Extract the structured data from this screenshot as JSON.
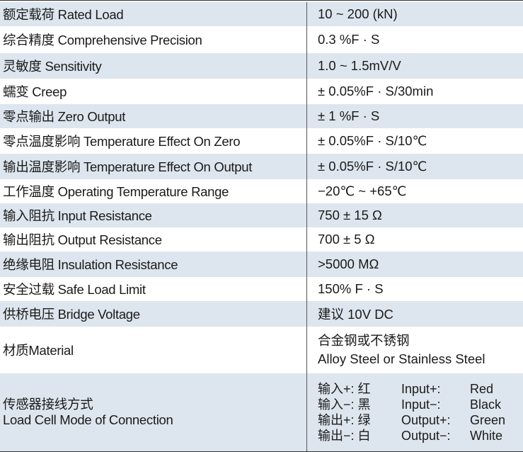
{
  "rows": [
    {
      "label": "额定载荷 Rated Load",
      "value": "10 ~ 200 (kN)"
    },
    {
      "label": "综合精度 Comprehensive Precision",
      "value": "0.3 %F · S"
    },
    {
      "label": "灵敏度 Sensitivity",
      "value": "1.0 ~ 1.5mV/V"
    },
    {
      "label": "蠕变 Creep",
      "value": "± 0.05%F · S/30min"
    },
    {
      "label": "零点输出 Zero Output",
      "value": "± 1 %F · S"
    },
    {
      "label": "零点温度影响 Temperature Effect On Zero",
      "value": "± 0.05%F · S/10℃"
    },
    {
      "label": "输出温度影响 Temperature Effect On Output",
      "value": "± 0.05%F · S/10℃"
    },
    {
      "label": "工作温度 Operating Temperature Range",
      "value": "−20℃ ~ +65℃"
    },
    {
      "label": "输入阻抗 Input Resistance",
      "value": "750 ± 15 Ω"
    },
    {
      "label": "输出阻抗 Output Resistance",
      "value": "700 ± 5 Ω"
    },
    {
      "label": "绝缘电阻 Insulation Resistance",
      "value": ">5000 MΩ"
    },
    {
      "label": "安全过载 Safe Load Limit",
      "value": "150% F · S"
    },
    {
      "label": "供桥电压 Bridge Voltage",
      "value": "建议 10V DC"
    }
  ],
  "material": {
    "label": "材质Material",
    "value_cn": "合金钢或不锈钢",
    "value_en": "Alloy Steel or Stainless Steel"
  },
  "connection": {
    "label_cn": "传感器接线方式",
    "label_en": "Load Cell Mode of Connection",
    "wires": [
      {
        "cn": "输入+:  红",
        "en": "Input+:",
        "color": "Red"
      },
      {
        "cn": "输入−:  黑",
        "en": "Input−:",
        "color": "Black"
      },
      {
        "cn": "输出+:  绿",
        "en": "Output+:",
        "color": "Green"
      },
      {
        "cn": "输出−:  白",
        "en": "Output−:",
        "color": "White"
      }
    ]
  }
}
